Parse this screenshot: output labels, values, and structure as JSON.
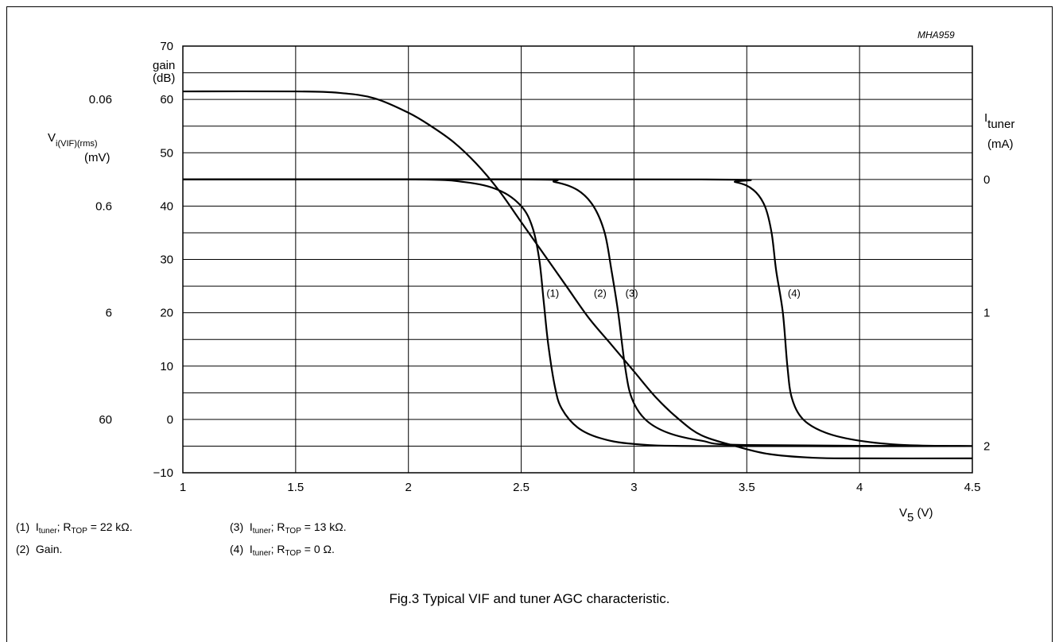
{
  "figure_code": "MHA959",
  "caption": "Fig.3  Typical VIF and tuner AGC characteristic.",
  "legend": [
    {
      "num": "(1)",
      "text": "I",
      "sub": "tuner",
      "rest": "; R",
      "sub2": "TOP",
      "tail": " = 22 kΩ."
    },
    {
      "num": "(2)",
      "text": "Gain.",
      "sub": "",
      "rest": "",
      "sub2": "",
      "tail": ""
    },
    {
      "num": "(3)",
      "text": "I",
      "sub": "tuner",
      "rest": "; R",
      "sub2": "TOP",
      "tail": " = 13 kΩ."
    },
    {
      "num": "(4)",
      "text": "I",
      "sub": "tuner",
      "rest": "; R",
      "sub2": "TOP",
      "tail": " = 0 Ω."
    }
  ],
  "chart_data": {
    "type": "line",
    "xlabel": {
      "main": "V",
      "sub": "5",
      "unit": " (V)"
    },
    "ylabel_left": {
      "line1": "gain",
      "line2": "(dB)"
    },
    "ylabel_vif": {
      "main": "V",
      "sub": "i(VIF)(rms)",
      "unit": "(mV)"
    },
    "ylabel_right": {
      "main": "I",
      "sub": "tuner",
      "unit": "(mA)"
    },
    "xlim": [
      1,
      4.5
    ],
    "ylim": [
      -10,
      70
    ],
    "grid": true,
    "x_ticks": [
      "1",
      "1.5",
      "2",
      "2.5",
      "3",
      "3.5",
      "4",
      "4.5"
    ],
    "y_ticks": [
      "−10",
      "0",
      "10",
      "20",
      "30",
      "40",
      "50",
      "60",
      "70"
    ],
    "vif_ticks": [
      {
        "label": "0.06",
        "at_gain": 60
      },
      {
        "label": "0.6",
        "at_gain": 40
      },
      {
        "label": "6",
        "at_gain": 20
      },
      {
        "label": "60",
        "at_gain": 0
      }
    ],
    "right_ticks": [
      {
        "label": "0",
        "at_gain": 45
      },
      {
        "label": "1",
        "at_gain": 20
      },
      {
        "label": "2",
        "at_gain": -5
      }
    ],
    "series": [
      {
        "label": "(2)",
        "label_at": [
          2.85,
          23
        ],
        "points": [
          [
            1,
            61.5
          ],
          [
            1.5,
            61.5
          ],
          [
            1.7,
            61.2
          ],
          [
            1.85,
            60.2
          ],
          [
            2.0,
            57.5
          ],
          [
            2.1,
            55
          ],
          [
            2.2,
            52
          ],
          [
            2.3,
            48
          ],
          [
            2.4,
            43
          ],
          [
            2.5,
            37
          ],
          [
            2.6,
            31
          ],
          [
            2.7,
            25
          ],
          [
            2.8,
            19
          ],
          [
            2.9,
            14
          ],
          [
            3.0,
            9
          ],
          [
            3.1,
            4
          ],
          [
            3.2,
            0
          ],
          [
            3.3,
            -3
          ],
          [
            3.45,
            -5
          ],
          [
            3.6,
            -6.5
          ],
          [
            3.8,
            -7.2
          ],
          [
            4.0,
            -7.3
          ],
          [
            4.5,
            -7.3
          ]
        ]
      },
      {
        "label": "(1)",
        "label_at": [
          2.64,
          23
        ],
        "points": [
          [
            1,
            45
          ],
          [
            2.0,
            45
          ],
          [
            2.25,
            44.5
          ],
          [
            2.4,
            43
          ],
          [
            2.5,
            40
          ],
          [
            2.55,
            36
          ],
          [
            2.58,
            30
          ],
          [
            2.6,
            22
          ],
          [
            2.62,
            14
          ],
          [
            2.65,
            6
          ],
          [
            2.68,
            2
          ],
          [
            2.75,
            -1.5
          ],
          [
            2.85,
            -3.5
          ],
          [
            3.0,
            -4.6
          ],
          [
            3.3,
            -5
          ],
          [
            4.5,
            -5
          ]
        ]
      },
      {
        "label": "(3)",
        "label_at": [
          2.99,
          23
        ],
        "points": [
          [
            1,
            45
          ],
          [
            2.5,
            45
          ],
          [
            2.65,
            44.5
          ],
          [
            2.75,
            43
          ],
          [
            2.82,
            40
          ],
          [
            2.87,
            35
          ],
          [
            2.9,
            28
          ],
          [
            2.93,
            20
          ],
          [
            2.96,
            10
          ],
          [
            2.99,
            4
          ],
          [
            3.05,
            0
          ],
          [
            3.15,
            -2.5
          ],
          [
            3.3,
            -4
          ],
          [
            3.5,
            -4.8
          ],
          [
            4.5,
            -5
          ]
        ]
      },
      {
        "label": "(4)",
        "label_at": [
          3.71,
          23
        ],
        "points": [
          [
            1,
            45
          ],
          [
            3.3,
            45
          ],
          [
            3.45,
            44.5
          ],
          [
            3.53,
            43
          ],
          [
            3.58,
            40
          ],
          [
            3.61,
            35
          ],
          [
            3.63,
            28
          ],
          [
            3.66,
            20
          ],
          [
            3.68,
            10
          ],
          [
            3.7,
            4
          ],
          [
            3.75,
            0
          ],
          [
            3.85,
            -2.5
          ],
          [
            4.0,
            -4
          ],
          [
            4.2,
            -4.8
          ],
          [
            4.5,
            -5
          ]
        ]
      }
    ]
  }
}
